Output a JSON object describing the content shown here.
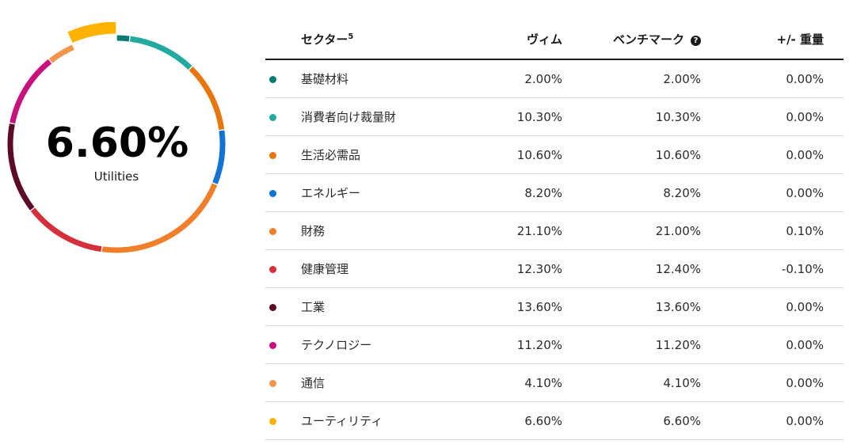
{
  "donut": {
    "center_value": "6.60%",
    "center_label": "Utilities",
    "highlighted_index": 9
  },
  "table": {
    "headers": {
      "sector": "セクター",
      "sector_note": "5",
      "fund": "ヴィム",
      "benchmark": "ベンチマーク",
      "help": "?",
      "diff": "+/- 重量"
    },
    "rows": [
      {
        "sector": "基礎材料",
        "fund": "2.00%",
        "benchmark": "2.00%",
        "diff": "0.00%"
      },
      {
        "sector": "消費者向け裁量財",
        "fund": "10.30%",
        "benchmark": "10.30%",
        "diff": "0.00%"
      },
      {
        "sector": "生活必需品",
        "fund": "10.60%",
        "benchmark": "10.60%",
        "diff": "0.00%"
      },
      {
        "sector": "エネルギー",
        "fund": "8.20%",
        "benchmark": "8.20%",
        "diff": "0.00%"
      },
      {
        "sector": "財務",
        "fund": "21.10%",
        "benchmark": "21.00%",
        "diff": "0.10%"
      },
      {
        "sector": "健康管理",
        "fund": "12.30%",
        "benchmark": "12.40%",
        "diff": "-0.10%"
      },
      {
        "sector": "工業",
        "fund": "13.60%",
        "benchmark": "13.60%",
        "diff": "0.00%"
      },
      {
        "sector": "テクノロジー",
        "fund": "11.20%",
        "benchmark": "11.20%",
        "diff": "0.00%"
      },
      {
        "sector": "通信",
        "fund": "4.10%",
        "benchmark": "4.10%",
        "diff": "0.00%"
      },
      {
        "sector": "ユーティリティ",
        "fund": "6.60%",
        "benchmark": "6.60%",
        "diff": "0.00%"
      }
    ]
  },
  "colors": [
    "#0b7a73",
    "#22aaa0",
    "#e8760f",
    "#1272d6",
    "#f07f2c",
    "#d42f3a",
    "#5c0a26",
    "#c8117c",
    "#f0954a",
    "#fdb300"
  ],
  "chart_data": {
    "type": "pie",
    "variant": "donut",
    "categories": [
      "基礎材料",
      "消費者向け裁量財",
      "生活必需品",
      "エネルギー",
      "財務",
      "健康管理",
      "工業",
      "テクノロジー",
      "通信",
      "ユーティリティ"
    ],
    "values": [
      2.0,
      10.3,
      10.6,
      8.2,
      21.1,
      12.3,
      13.6,
      11.2,
      4.1,
      6.6
    ]
  }
}
